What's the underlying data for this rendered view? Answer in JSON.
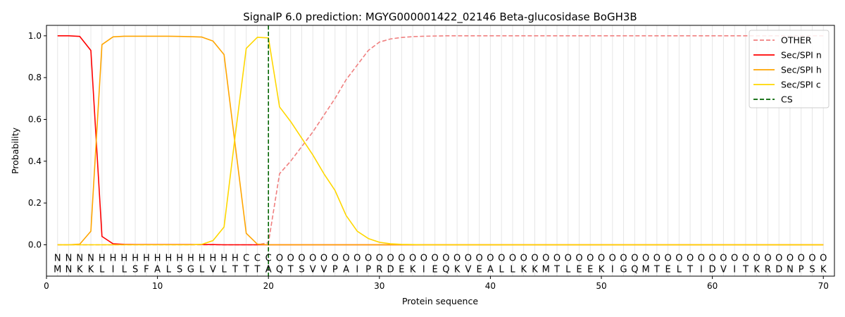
{
  "chart_data": {
    "type": "line",
    "title": "SignalP 6.0 prediction: MGYG000001422_02146 Beta-glucosidase BoGH3B",
    "xlabel": "Protein sequence",
    "ylabel": "Probability",
    "xlim": [
      0,
      71
    ],
    "ylim": [
      -0.15,
      1.05
    ],
    "xticks": [
      0,
      10,
      20,
      30,
      40,
      50,
      60,
      70
    ],
    "yticks": [
      0.0,
      0.2,
      0.4,
      0.6,
      0.8,
      1.0
    ],
    "xtick_labels": [
      "0",
      "10",
      "20",
      "30",
      "40",
      "50",
      "60",
      "70"
    ],
    "ytick_labels": [
      "0.0",
      "0.2",
      "0.4",
      "0.6",
      "0.8",
      "1.0"
    ],
    "legend_position": "top-right",
    "sequence": [
      "M",
      "N",
      "K",
      "K",
      "L",
      "I",
      "L",
      "S",
      "F",
      "A",
      "L",
      "S",
      "G",
      "L",
      "V",
      "L",
      "T",
      "T",
      "T",
      "A",
      "Q",
      "T",
      "S",
      "V",
      "V",
      "P",
      "A",
      "I",
      "P",
      "R",
      "D",
      "E",
      "K",
      "I",
      "E",
      "Q",
      "K",
      "V",
      "E",
      "A",
      "L",
      "L",
      "K",
      "K",
      "M",
      "T",
      "L",
      "E",
      "E",
      "K",
      "I",
      "G",
      "Q",
      "M",
      "T",
      "E",
      "L",
      "T",
      "I",
      "D",
      "V",
      "I",
      "T",
      "K",
      "R",
      "D",
      "N",
      "P",
      "S",
      "K"
    ],
    "labels": [
      "N",
      "N",
      "N",
      "N",
      "H",
      "H",
      "H",
      "H",
      "H",
      "H",
      "H",
      "H",
      "H",
      "H",
      "H",
      "H",
      "H",
      "C",
      "C",
      "C",
      "O",
      "O",
      "O",
      "O",
      "O",
      "O",
      "O",
      "O",
      "O",
      "O",
      "O",
      "O",
      "O",
      "O",
      "O",
      "O",
      "O",
      "O",
      "O",
      "O",
      "O",
      "O",
      "O",
      "O",
      "O",
      "O",
      "O",
      "O",
      "O",
      "O",
      "O",
      "O",
      "O",
      "O",
      "O",
      "O",
      "O",
      "O",
      "O",
      "O",
      "O",
      "O",
      "O",
      "O",
      "O",
      "O",
      "O",
      "O",
      "O",
      "O"
    ],
    "label_colors": {
      "N": "#ff0000",
      "H": "#ffa500",
      "C": "#ffd700",
      "O": "#808080"
    },
    "cs_position": 20,
    "series": [
      {
        "name": "OTHER",
        "color": "#f08080",
        "dash": "dashed",
        "values": [
          0,
          0,
          0,
          0,
          0,
          0,
          0,
          0,
          0,
          0,
          0,
          0,
          0,
          0,
          0,
          0,
          0,
          0,
          0,
          0.01,
          0.34,
          0.4,
          0.47,
          0.54,
          0.62,
          0.7,
          0.79,
          0.86,
          0.93,
          0.97,
          0.985,
          0.992,
          0.996,
          0.998,
          0.999,
          1,
          1,
          1,
          1,
          1,
          1,
          1,
          1,
          1,
          1,
          1,
          1,
          1,
          1,
          1,
          1,
          1,
          1,
          1,
          1,
          1,
          1,
          1,
          1,
          1,
          1,
          1,
          1,
          1,
          1,
          1,
          1,
          1,
          1,
          1
        ]
      },
      {
        "name": "Sec/SPI n",
        "color": "#ff0000",
        "dash": "solid",
        "values": [
          1.0,
          1.0,
          0.997,
          0.93,
          0.04,
          0.005,
          0.002,
          0.001,
          0.001,
          0.001,
          0.001,
          0.001,
          0.001,
          0.001,
          0.001,
          0,
          0,
          0,
          0,
          0,
          0,
          0,
          0,
          0,
          0,
          0,
          0,
          0,
          0,
          0,
          0,
          0,
          0,
          0,
          0,
          0,
          0,
          0,
          0,
          0,
          0,
          0,
          0,
          0,
          0,
          0,
          0,
          0,
          0,
          0,
          0,
          0,
          0,
          0,
          0,
          0,
          0,
          0,
          0,
          0,
          0,
          0,
          0,
          0,
          0,
          0,
          0,
          0,
          0,
          0
        ]
      },
      {
        "name": "Sec/SPI h",
        "color": "#ffa500",
        "dash": "solid",
        "values": [
          0,
          0,
          0.003,
          0.065,
          0.958,
          0.995,
          0.998,
          0.998,
          0.998,
          0.998,
          0.998,
          0.997,
          0.996,
          0.994,
          0.975,
          0.91,
          0.48,
          0.055,
          0.003,
          0,
          0,
          0,
          0,
          0,
          0,
          0,
          0,
          0,
          0,
          0,
          0,
          0,
          0,
          0,
          0,
          0,
          0,
          0,
          0,
          0,
          0,
          0,
          0,
          0,
          0,
          0,
          0,
          0,
          0,
          0,
          0,
          0,
          0,
          0,
          0,
          0,
          0,
          0,
          0,
          0,
          0,
          0,
          0,
          0,
          0,
          0,
          0,
          0,
          0,
          0
        ]
      },
      {
        "name": "Sec/SPI c",
        "color": "#ffd700",
        "dash": "solid",
        "values": [
          0,
          0,
          0,
          0,
          0,
          0,
          0,
          0,
          0,
          0,
          0,
          0,
          0,
          0.002,
          0.02,
          0.085,
          0.52,
          0.94,
          0.993,
          0.99,
          0.66,
          0.59,
          0.51,
          0.43,
          0.34,
          0.26,
          0.14,
          0.065,
          0.03,
          0.012,
          0.005,
          0.002,
          0.001,
          0,
          0,
          0,
          0,
          0,
          0,
          0,
          0,
          0,
          0,
          0,
          0,
          0,
          0,
          0,
          0,
          0,
          0,
          0,
          0,
          0,
          0,
          0,
          0,
          0,
          0,
          0,
          0,
          0,
          0,
          0,
          0,
          0,
          0,
          0,
          0,
          0
        ]
      }
    ],
    "cs_legend": {
      "name": "CS",
      "color": "#006400",
      "dash": "dashed"
    }
  }
}
